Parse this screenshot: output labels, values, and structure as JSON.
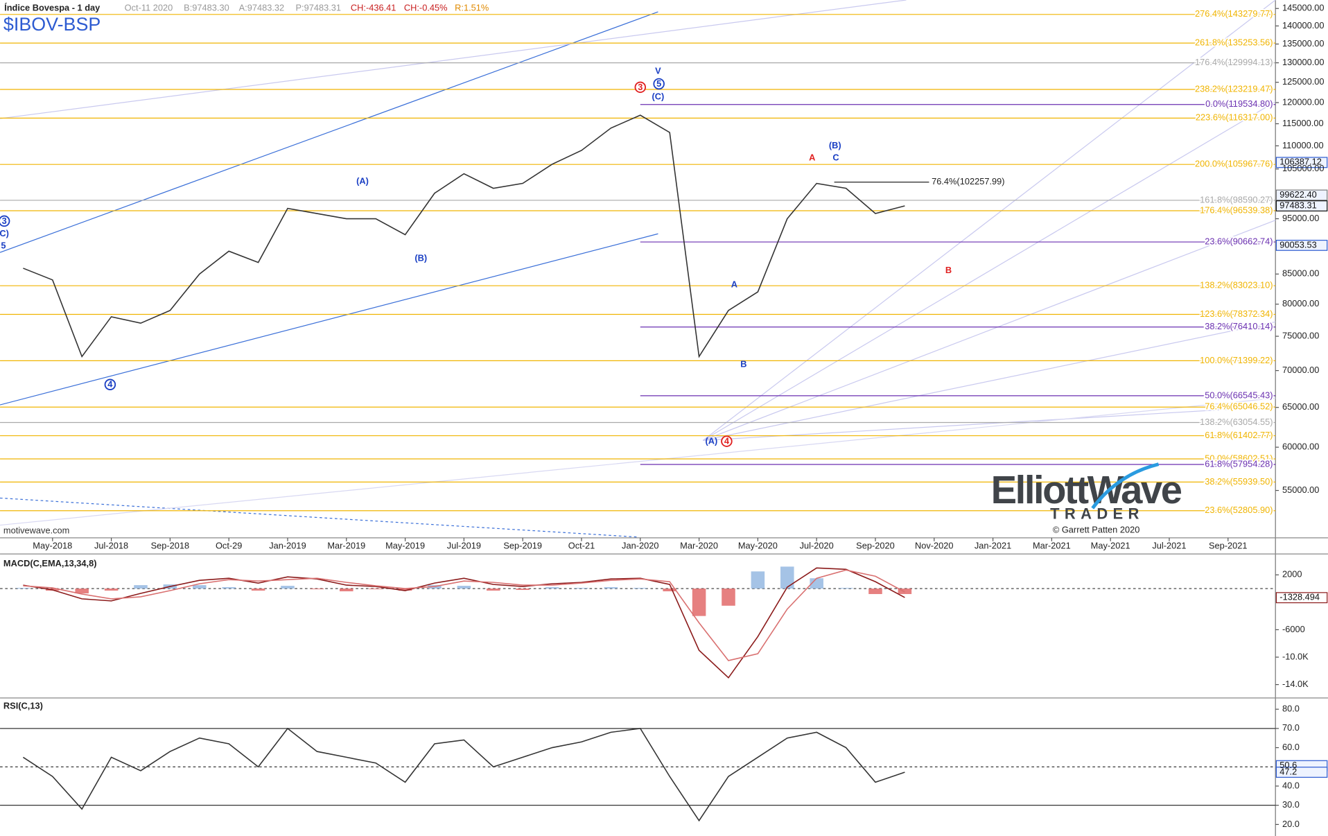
{
  "header": {
    "title": "Índice Bovespa - 1 day",
    "symbol": "$IBOV-BSP",
    "stats": [
      {
        "text": "Oct-11 2020",
        "color": "#9a9a9a"
      },
      {
        "text": "B:97483.30",
        "color": "#9a9a9a"
      },
      {
        "text": "A:97483.32",
        "color": "#9a9a9a"
      },
      {
        "text": "P:97483.31",
        "color": "#9a9a9a"
      },
      {
        "text": "CH:-436.41",
        "color": "#c81e1e"
      },
      {
        "text": "CH:-0.45%",
        "color": "#c81e1e"
      },
      {
        "text": "R:1.51%",
        "color": "#e08a00"
      }
    ],
    "source": "motivewave.com"
  },
  "watermark": {
    "brand": "ElliottWave",
    "sub": "TRADER",
    "copyright": "© Garrett Patten 2020"
  },
  "chart_data": [
    {
      "type": "line",
      "log_scale": true,
      "categories": [
        null,
        "May-2018",
        null,
        "Jul-2018",
        null,
        "Sep-2018",
        null,
        "Oct-29",
        null,
        "Jan-2019",
        null,
        "Mar-2019",
        null,
        "May-2019",
        null,
        "Jul-2019",
        null,
        "Sep-2019",
        null,
        "Oct-21",
        null,
        "Jan-2020",
        null,
        "Mar-2020",
        null,
        "May-2020",
        null,
        "Jul-2020",
        null,
        "Sep-2020",
        null,
        "Nov-2020",
        null,
        "Jan-2021",
        null,
        "Mar-2021",
        null,
        "May-2021",
        null,
        "Jul-2021",
        null,
        "Sep-2021"
      ],
      "series": [
        {
          "color": "#333333",
          "values": [
            86000,
            84000,
            72000,
            78000,
            77000,
            79000,
            85000,
            89000,
            87000,
            97000,
            96000,
            95000,
            95000,
            92000,
            100000,
            104000,
            101000,
            102000,
            106000,
            109000,
            114000,
            117000,
            113000,
            72000,
            79000,
            82000,
            95000,
            102000,
            101000,
            96000,
            97483.31,
            null,
            null,
            null,
            null,
            null,
            null,
            null,
            null,
            null,
            null,
            null
          ]
        }
      ],
      "ylim": [
        50000,
        147500
      ],
      "yticks": [
        {
          "value": 55000,
          "label": "55000.00"
        },
        {
          "value": 60000,
          "label": "60000.00"
        },
        {
          "value": 65000,
          "label": "65000.00"
        },
        {
          "value": 70000,
          "label": "70000.00"
        },
        {
          "value": 75000,
          "label": "75000.00"
        },
        {
          "value": 80000,
          "label": "80000.00"
        },
        {
          "value": 85000,
          "label": "85000.00"
        },
        {
          "value": 95000,
          "label": "95000.00"
        },
        {
          "value": 105000,
          "label": "105000.00"
        },
        {
          "value": 110000,
          "label": "110000.00"
        },
        {
          "value": 115000,
          "label": "115000.00"
        },
        {
          "value": 120000,
          "label": "120000.00"
        },
        {
          "value": 125000,
          "label": "125000.00"
        },
        {
          "value": 130000,
          "label": "130000.00"
        },
        {
          "value": 135000,
          "label": "135000.00"
        },
        {
          "value": 140000,
          "label": "140000.00"
        },
        {
          "value": 145000,
          "label": "145000.00"
        }
      ],
      "fib_extension": {
        "color": "#f0b400",
        "levels": [
          {
            "label": "276.4%(143279.77)",
            "value": 143279.77
          },
          {
            "label": "261.8%(135253.56)",
            "value": 135253.56
          },
          {
            "label": "238.2%(123219.47)",
            "value": 123219.47
          },
          {
            "label": "223.6%(116317.00)",
            "value": 116317.0
          },
          {
            "label": "200.0%(105967.76)",
            "value": 105967.76
          },
          {
            "label": "176.4%(96539.38)",
            "value": 96539.38
          },
          {
            "label": "138.2%(83023.10)",
            "value": 83023.1
          },
          {
            "label": "123.6%(78372.34)",
            "value": 78372.34
          },
          {
            "label": "100.0%(71399.22)",
            "value": 71399.22
          },
          {
            "label": "76.4%(65046.52)",
            "value": 65046.52
          },
          {
            "label": "61.8%(61402.77)",
            "value": 61402.77
          },
          {
            "label": "50.0%(58602.51)",
            "value": 58602.51
          },
          {
            "label": "38.2%(55939.50)",
            "value": 55939.5
          },
          {
            "label": "23.6%(52805.90)",
            "value": 52805.9
          }
        ]
      },
      "fib_gray": {
        "color": "#a8a8a8",
        "levels": [
          {
            "label": "176.4%(129994.13)",
            "value": 129994.13
          },
          {
            "label": "161.8%(98590.27)",
            "value": 98590.27
          },
          {
            "label": "138.2%(63054.55)",
            "value": 63054.55
          }
        ]
      },
      "fib_retrace": {
        "color": "#6a2fb0",
        "levels": [
          {
            "label": "0.0%(119534.80)",
            "value": 119534.8
          },
          {
            "label": "23.6%(90662.74)",
            "value": 90662.74
          },
          {
            "label": "38.2%(76410.14)",
            "value": 76410.14
          },
          {
            "label": "50.0%(66545.43)",
            "value": 66545.43
          },
          {
            "label": "61.8%(57954.28)",
            "value": 57954.28
          }
        ]
      },
      "fib_short": {
        "color": "#222222",
        "levels": [
          {
            "label": "76.4%(102257.99)",
            "value": 102257.99
          }
        ]
      },
      "price_boxes": [
        {
          "label": "106387.12",
          "value": 106387.12,
          "color": "#2d5bd1"
        },
        {
          "label": "99622.40",
          "value": 99622.4,
          "color": "#7a7a7a"
        },
        {
          "label": "97483.31",
          "value": 97483.31,
          "color": "#111111"
        },
        {
          "label": "90053.53",
          "value": 90053.53,
          "color": "#2d5bd1"
        }
      ],
      "wave_labels": [
        {
          "text": "3",
          "color": "#1a3fc4",
          "circled": true
        },
        {
          "text": "C)",
          "color": "#1a3fc4",
          "circled": false
        },
        {
          "text": "5",
          "color": "#1a3fc4",
          "circled": false
        },
        {
          "text": "4",
          "color": "#1a3fc4",
          "circled": true
        },
        {
          "text": "(A)",
          "color": "#1a3fc4",
          "circled": false
        },
        {
          "text": "(B)",
          "color": "#1a3fc4",
          "circled": false
        },
        {
          "text": "3",
          "color": "#e02020",
          "circled": true
        },
        {
          "text": "V",
          "color": "#1a3fc4",
          "circled": false
        },
        {
          "text": "5",
          "color": "#1a3fc4",
          "circled": true
        },
        {
          "text": "(C)",
          "color": "#1a3fc4",
          "circled": false
        },
        {
          "text": "A",
          "color": "#1a3fc4",
          "circled": false
        },
        {
          "text": "B",
          "color": "#1a3fc4",
          "circled": false
        },
        {
          "text": "(A)",
          "color": "#1a3fc4",
          "circled": false
        },
        {
          "text": "4",
          "color": "#e02020",
          "circled": true
        },
        {
          "text": "A",
          "color": "#e02020",
          "circled": false
        },
        {
          "text": "(B)",
          "color": "#1a3fc4",
          "circled": false
        },
        {
          "text": "C",
          "color": "#1a3fc4",
          "circled": false
        },
        {
          "text": "B",
          "color": "#e02020",
          "circled": false
        }
      ]
    },
    {
      "type": "line",
      "title": "MACD(C,EMA,13,34,8)",
      "series": [
        {
          "color": "#8b1a1a",
          "values": [
            500,
            -200,
            -1500,
            -1800,
            -700,
            300,
            1200,
            1500,
            800,
            1700,
            1400,
            500,
            300,
            -300,
            800,
            1500,
            600,
            300,
            700,
            900,
            1400,
            1500,
            600,
            -9000,
            -13000,
            -7000,
            200,
            3000,
            2800,
            1000,
            -1300,
            null,
            null,
            null,
            null,
            null,
            null,
            null,
            null,
            null,
            null,
            null
          ]
        },
        {
          "color": "#d97070",
          "values": [
            400,
            100,
            -800,
            -1500,
            -1200,
            -300,
            700,
            1300,
            1100,
            1300,
            1500,
            900,
            400,
            0,
            300,
            1100,
            900,
            500,
            500,
            800,
            1200,
            1400,
            1000,
            -5000,
            -10500,
            -9500,
            -3000,
            1500,
            2700,
            1800,
            -500,
            null,
            null,
            null,
            null,
            null,
            null,
            null,
            null,
            null,
            null,
            null
          ]
        }
      ],
      "histogram": {
        "up_color": "#8fb4e0",
        "down_color": "#e06060",
        "values": [
          100,
          -300,
          -700,
          -300,
          500,
          600,
          500,
          200,
          -300,
          400,
          -100,
          -400,
          -100,
          -300,
          500,
          400,
          -300,
          -200,
          200,
          100,
          200,
          100,
          -400,
          -4000,
          -2500,
          2500,
          3200,
          1500,
          100,
          -800,
          -800,
          null,
          null,
          null,
          null,
          null,
          null,
          null,
          null,
          null,
          null,
          null
        ]
      },
      "ylim": [
        -15700,
        4800
      ],
      "yticks": [
        2000,
        -6000,
        {
          "value": -10000,
          "label": "-10.0K"
        },
        {
          "value": -14000,
          "label": "-14.0K"
        }
      ],
      "zero_line": 0,
      "value_box": {
        "label": "-1328.494",
        "value": -1328.494
      }
    },
    {
      "type": "line",
      "title": "RSI(C,13)",
      "series": [
        {
          "color": "#333333",
          "values": [
            55,
            45,
            28,
            55,
            48,
            58,
            65,
            62,
            50,
            70,
            58,
            55,
            52,
            42,
            62,
            64,
            50,
            55,
            60,
            63,
            68,
            70,
            45,
            22,
            45,
            55,
            65,
            68,
            60,
            42,
            47.2,
            null,
            null,
            null,
            null,
            null,
            null,
            null,
            null,
            null,
            null,
            null
          ]
        }
      ],
      "ylim": [
        14,
        85
      ],
      "yticks": [
        {
          "value": 20,
          "label": "20.0"
        },
        {
          "value": 30,
          "label": "30.0"
        },
        {
          "value": 40,
          "label": "40.0"
        },
        {
          "value": 60,
          "label": "60.0"
        },
        {
          "value": 70,
          "label": "70.0"
        },
        {
          "value": 80,
          "label": "80.0"
        }
      ],
      "bands": [
        30,
        70
      ],
      "mid_line": 50,
      "value_boxes": [
        {
          "label": "50.6",
          "value": 50.6
        },
        {
          "label": "47.2",
          "value": 47.2
        }
      ]
    }
  ]
}
